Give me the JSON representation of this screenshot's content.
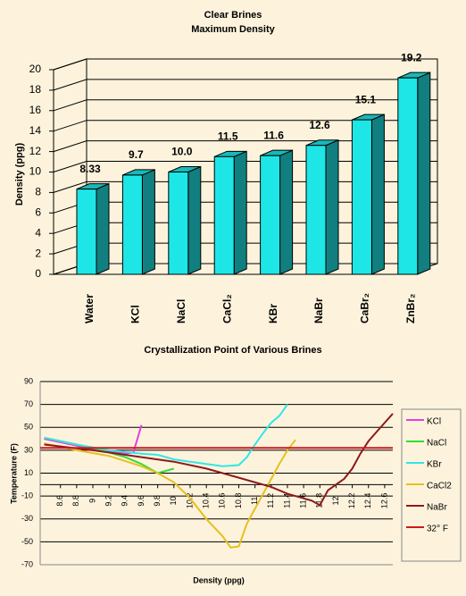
{
  "chart_data": [
    {
      "type": "bar3d",
      "title": "Clear Brines",
      "subtitle": "Maximum Density",
      "y_label": "Density (ppg)",
      "categories": [
        "Water",
        "KCl",
        "NaCl",
        "CaCl₂",
        "KBr",
        "NaBr",
        "CaBr₂",
        "ZnBr₂"
      ],
      "values": [
        8.33,
        9.7,
        10.0,
        11.5,
        11.6,
        12.6,
        15.1,
        19.2
      ],
      "value_labels": [
        "8.33",
        "9.7",
        "10.0",
        "11.5",
        "11.6",
        "12.6",
        "15.1",
        "19.2"
      ],
      "ylim": [
        0,
        20
      ],
      "yticks": [
        0,
        2,
        4,
        6,
        8,
        10,
        12,
        14,
        16,
        18,
        20
      ],
      "color": "#1ee6e6",
      "grid": true
    },
    {
      "type": "line",
      "title": "Crystallization Point of Various Brines",
      "x_label": "Density (ppg)",
      "y_label": "Temperature (F)",
      "xlim": [
        8.35,
        12.7
      ],
      "ylim": [
        -70,
        90
      ],
      "xticks": [
        8.6,
        8.8,
        9,
        9.2,
        9.4,
        9.6,
        9.8,
        10,
        10.2,
        10.4,
        10.6,
        10.8,
        11,
        11.2,
        11.4,
        11.6,
        11.8,
        12,
        12.2,
        12.4,
        12.6
      ],
      "yticks": [
        -70,
        -50,
        -30,
        -10,
        10,
        30,
        50,
        70,
        90
      ],
      "grid": true,
      "legend": "right",
      "series": [
        {
          "name": "KCl",
          "color": "#e040e0",
          "x": [
            8.4,
            8.6,
            8.8,
            9.0,
            9.2,
            9.4,
            9.5,
            9.6
          ],
          "values": [
            40,
            37,
            34,
            31,
            29,
            27,
            28,
            52
          ]
        },
        {
          "name": "NaCl",
          "color": "#33dd33",
          "x": [
            8.4,
            8.6,
            8.8,
            9.0,
            9.2,
            9.4,
            9.6,
            9.8,
            10.0
          ],
          "values": [
            41,
            38,
            35,
            32,
            28,
            24,
            18,
            10,
            14
          ]
        },
        {
          "name": "KBr",
          "color": "#33e6e6",
          "x": [
            8.4,
            8.8,
            9.2,
            9.6,
            9.8,
            10.0,
            10.2,
            10.4,
            10.6,
            10.8,
            10.9,
            11.0,
            11.1,
            11.2,
            11.3,
            11.4
          ],
          "values": [
            41,
            35,
            30,
            27,
            26,
            22,
            20,
            18,
            16,
            17,
            24,
            35,
            45,
            54,
            60,
            70
          ]
        },
        {
          "name": "CaCl2",
          "color": "#e6c01e",
          "x": [
            8.4,
            8.8,
            9.2,
            9.6,
            9.8,
            10.0,
            10.2,
            10.4,
            10.6,
            10.7,
            10.8,
            10.9,
            11.3,
            11.4,
            11.5
          ],
          "values": [
            36,
            30,
            25,
            16,
            10,
            2,
            -12,
            -30,
            -45,
            -55,
            -54,
            -34,
            18,
            30,
            39
          ]
        },
        {
          "name": "NaBr",
          "color": "#8b1a1a",
          "x": [
            8.4,
            9.0,
            9.6,
            10.0,
            10.4,
            10.8,
            11.2,
            11.4,
            11.6,
            11.7,
            11.8,
            11.9,
            12.1,
            12.2,
            12.3,
            12.4,
            12.5,
            12.6,
            12.7
          ],
          "values": [
            35,
            30,
            24,
            20,
            14,
            6,
            -2,
            -8,
            -12,
            -14,
            -18,
            -5,
            5,
            14,
            27,
            38,
            46,
            54,
            62
          ]
        },
        {
          "name": "32° F",
          "color": "#cc1a1a",
          "x": [
            8.35,
            12.7
          ],
          "values": [
            32,
            32
          ]
        }
      ]
    }
  ]
}
